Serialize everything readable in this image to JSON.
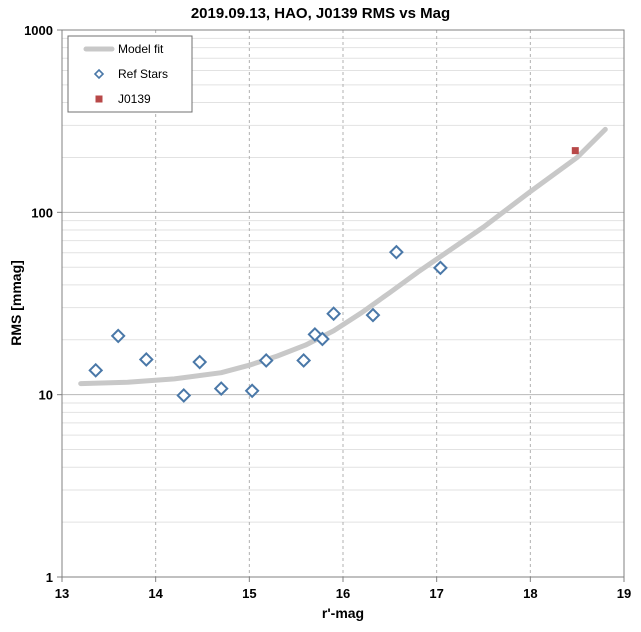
{
  "chart_data": {
    "type": "scatter",
    "title": "2019.09.13, HAO, J0139 RMS vs Mag",
    "xlabel": "r'-mag",
    "ylabel": "RMS [mmag]",
    "xlim": [
      13,
      19
    ],
    "ylim": [
      1,
      1000
    ],
    "yscale": "log",
    "xticks": [
      "13",
      "14",
      "15",
      "16",
      "17",
      "18",
      "19"
    ],
    "yticks": [
      "1",
      "10",
      "100",
      "1000"
    ],
    "grid": true,
    "legend_position": "top-left",
    "series": [
      {
        "name": "Model fit",
        "kind": "line",
        "color": "#c8c8c8",
        "points": [
          [
            13.2,
            11.5
          ],
          [
            13.7,
            11.7
          ],
          [
            14.2,
            12.2
          ],
          [
            14.7,
            13.2
          ],
          [
            15.0,
            14.5
          ],
          [
            15.3,
            16.3
          ],
          [
            15.6,
            18.7
          ],
          [
            15.9,
            22.4
          ],
          [
            16.2,
            28.2
          ],
          [
            16.5,
            36.3
          ],
          [
            16.8,
            47.0
          ],
          [
            17.1,
            60.0
          ],
          [
            17.5,
            83.0
          ],
          [
            18.0,
            130.0
          ],
          [
            18.5,
            200.0
          ],
          [
            18.8,
            285.0
          ]
        ]
      },
      {
        "name": "Ref Stars",
        "kind": "scatter",
        "marker": "diamond-open",
        "color": "#4a78a8",
        "points": [
          [
            13.36,
            13.6
          ],
          [
            13.6,
            21.0
          ],
          [
            13.9,
            15.6
          ],
          [
            14.3,
            9.9
          ],
          [
            14.47,
            15.1
          ],
          [
            14.7,
            10.8
          ],
          [
            15.03,
            10.5
          ],
          [
            15.18,
            15.4
          ],
          [
            15.58,
            15.4
          ],
          [
            15.7,
            21.4
          ],
          [
            15.78,
            20.2
          ],
          [
            15.9,
            27.8
          ],
          [
            16.32,
            27.3
          ],
          [
            16.57,
            60.5
          ],
          [
            17.04,
            49.6
          ]
        ]
      },
      {
        "name": "J0139",
        "kind": "scatter",
        "marker": "square-filled",
        "color": "#b84848",
        "points": [
          [
            18.48,
            218.0
          ]
        ]
      }
    ]
  }
}
